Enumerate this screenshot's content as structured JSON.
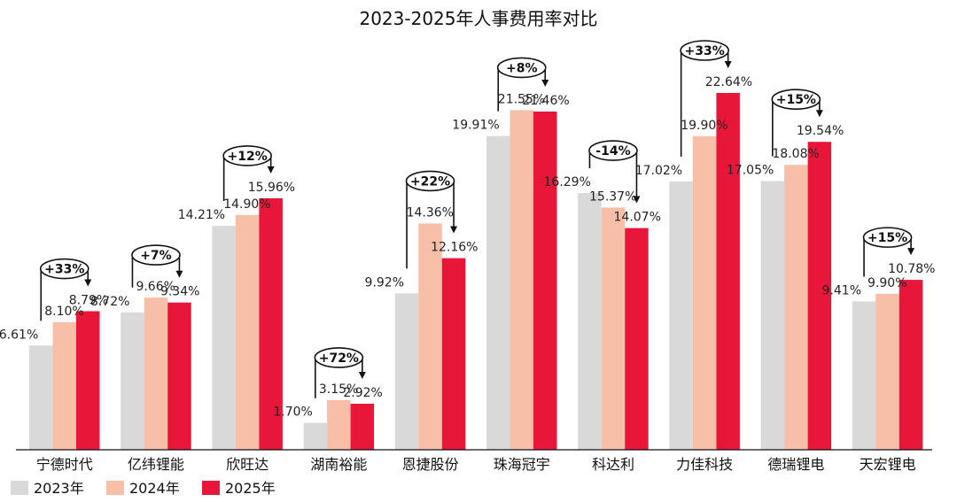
{
  "chart_data": {
    "type": "bar",
    "title": "2023-2025年人事费用率对比",
    "xlabel": "",
    "ylabel": "",
    "ylim": [
      0,
      25
    ],
    "grid": false,
    "legend_position": "bottom-left",
    "categories": [
      "宁德时代",
      "亿纬锂能",
      "欣旺达",
      "湖南裕能",
      "恩捷股份",
      "珠海冠宇",
      "科达利",
      "力佳科技",
      "德瑞锂电",
      "天宏锂电"
    ],
    "series": [
      {
        "name": "2023年",
        "color": "#d9d9d9",
        "values": [
          6.61,
          8.72,
          14.21,
          1.7,
          9.92,
          19.91,
          16.29,
          17.02,
          17.05,
          9.41
        ],
        "labels": [
          "6.61%",
          "8.72%",
          "14.21%",
          "1.70%",
          "9.92%",
          "19.91%",
          "16.29%",
          "17.02%",
          "17.05%",
          "9.41%"
        ]
      },
      {
        "name": "2024年",
        "color": "#f8bfa8",
        "values": [
          8.1,
          9.66,
          14.9,
          3.15,
          14.36,
          21.55,
          15.37,
          19.9,
          18.08,
          9.9
        ],
        "labels": [
          "8.10%",
          "9.66%",
          "14.90%",
          "3.15%",
          "14.36%",
          "21.55%",
          "15.37%",
          "19.90%",
          "18.08%",
          "9.90%"
        ]
      },
      {
        "name": "2025年",
        "color": "#e8173a",
        "values": [
          8.79,
          9.34,
          15.96,
          2.92,
          12.16,
          21.46,
          14.07,
          22.64,
          19.54,
          10.78
        ],
        "labels": [
          "8.79%",
          "9.34%",
          "15.96%",
          "2.92%",
          "12.16%",
          "21.46%",
          "14.07%",
          "22.64%",
          "19.54%",
          "10.78%"
        ]
      }
    ],
    "annotations": [
      "+33%",
      "+7%",
      "+12%",
      "+72%",
      "+22%",
      "+8%",
      "-14%",
      "+33%",
      "+15%",
      "+15%"
    ]
  }
}
